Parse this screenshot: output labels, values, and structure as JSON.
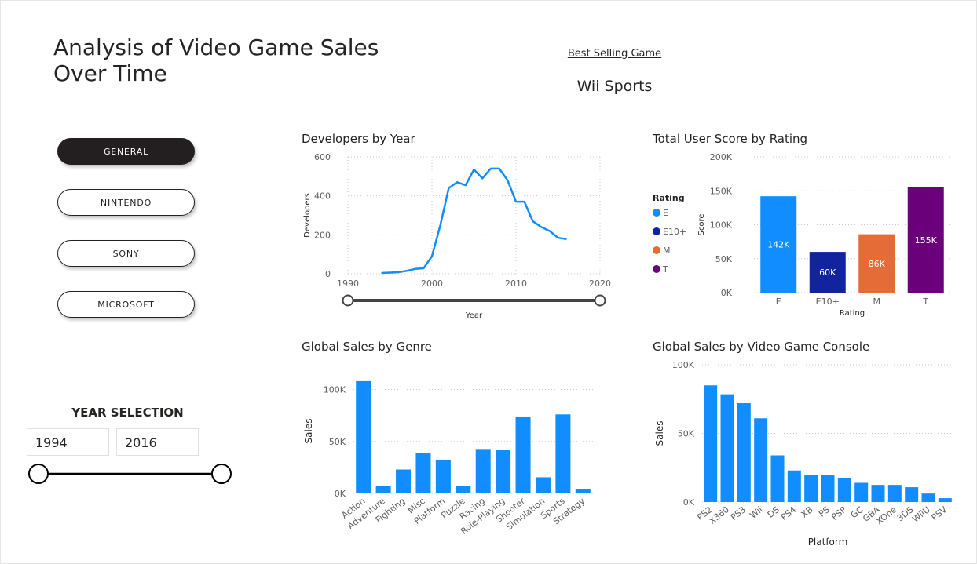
{
  "report": {
    "title_line1": "Analysis of Video Game Sales",
    "title_line2": "Over Time",
    "best_selling_label": "Best Selling Game",
    "best_selling_value": "Wii Sports"
  },
  "nav": {
    "buttons": [
      {
        "label": "GENERAL",
        "active": true
      },
      {
        "label": "NINTENDO",
        "active": false
      },
      {
        "label": "SONY",
        "active": false
      },
      {
        "label": "MICROSOFT",
        "active": false
      }
    ]
  },
  "year_selection": {
    "title": "YEAR SELECTION",
    "start": "1994",
    "end": "2016"
  },
  "colors": {
    "blue": "#118dff",
    "navy": "#12239e",
    "orange": "#e66c37",
    "purple": "#6b007b",
    "slider": "#252423"
  },
  "chart_data": [
    {
      "type": "line",
      "title": "Developers by Year",
      "xlabel": "Year",
      "ylabel": "Developers",
      "xlim": [
        1990,
        2020
      ],
      "ylim": [
        0,
        600
      ],
      "x_ticks": [
        "1990",
        "2000",
        "2010",
        "2020"
      ],
      "y_ticks": [
        "0",
        "200",
        "400",
        "600"
      ],
      "x": [
        1994,
        1995,
        1996,
        1997,
        1998,
        1999,
        2000,
        2001,
        2002,
        2003,
        2004,
        2005,
        2006,
        2007,
        2008,
        2009,
        2010,
        2011,
        2012,
        2013,
        2014,
        2015,
        2016
      ],
      "values": [
        4,
        6,
        8,
        15,
        25,
        28,
        90,
        250,
        440,
        470,
        455,
        535,
        490,
        540,
        540,
        480,
        370,
        370,
        270,
        240,
        220,
        185,
        178
      ],
      "slider_range": [
        1990,
        2020
      ],
      "slider_label": "Year"
    },
    {
      "type": "bar",
      "title": "Total User Score by Rating",
      "xlabel": "Rating",
      "ylabel": "Score",
      "legend_title": "Rating",
      "legend_position": "left",
      "categories": [
        "E",
        "E10+",
        "M",
        "T"
      ],
      "values": [
        142000,
        60000,
        86000,
        155000
      ],
      "data_labels": [
        "142K",
        "60K",
        "86K",
        "155K"
      ],
      "ylim": [
        0,
        200000
      ],
      "y_ticks": [
        "0K",
        "50K",
        "100K",
        "150K",
        "200K"
      ]
    },
    {
      "type": "bar",
      "title": "Global Sales by Genre",
      "xlabel": "",
      "ylabel": "Sales",
      "categories": [
        "Action",
        "Adventure",
        "Fighting",
        "Misc",
        "Platform",
        "Puzzle",
        "Racing",
        "Role-Playing",
        "Shooter",
        "Simulation",
        "Sports",
        "Strategy"
      ],
      "values": [
        108000,
        7000,
        23000,
        38500,
        32500,
        7000,
        42000,
        41500,
        74000,
        15500,
        76000,
        4000
      ],
      "ylim": [
        0,
        120000
      ],
      "y_ticks": [
        "0K",
        "50K",
        "100K"
      ]
    },
    {
      "type": "bar",
      "title": "Global Sales by Video Game Console",
      "xlabel": "Platform",
      "ylabel": "Sales",
      "categories": [
        "PS2",
        "X360",
        "PS3",
        "Wii",
        "DS",
        "PS4",
        "XB",
        "PS",
        "PSP",
        "GC",
        "GBA",
        "XOne",
        "3DS",
        "WiiU",
        "PSV"
      ],
      "values": [
        85000,
        78500,
        72000,
        61000,
        34000,
        23000,
        20000,
        19500,
        17500,
        14000,
        12500,
        12500,
        10800,
        6200,
        2800
      ],
      "ylim": [
        0,
        100000
      ],
      "y_ticks": [
        "0K",
        "50K",
        "100K"
      ]
    }
  ]
}
